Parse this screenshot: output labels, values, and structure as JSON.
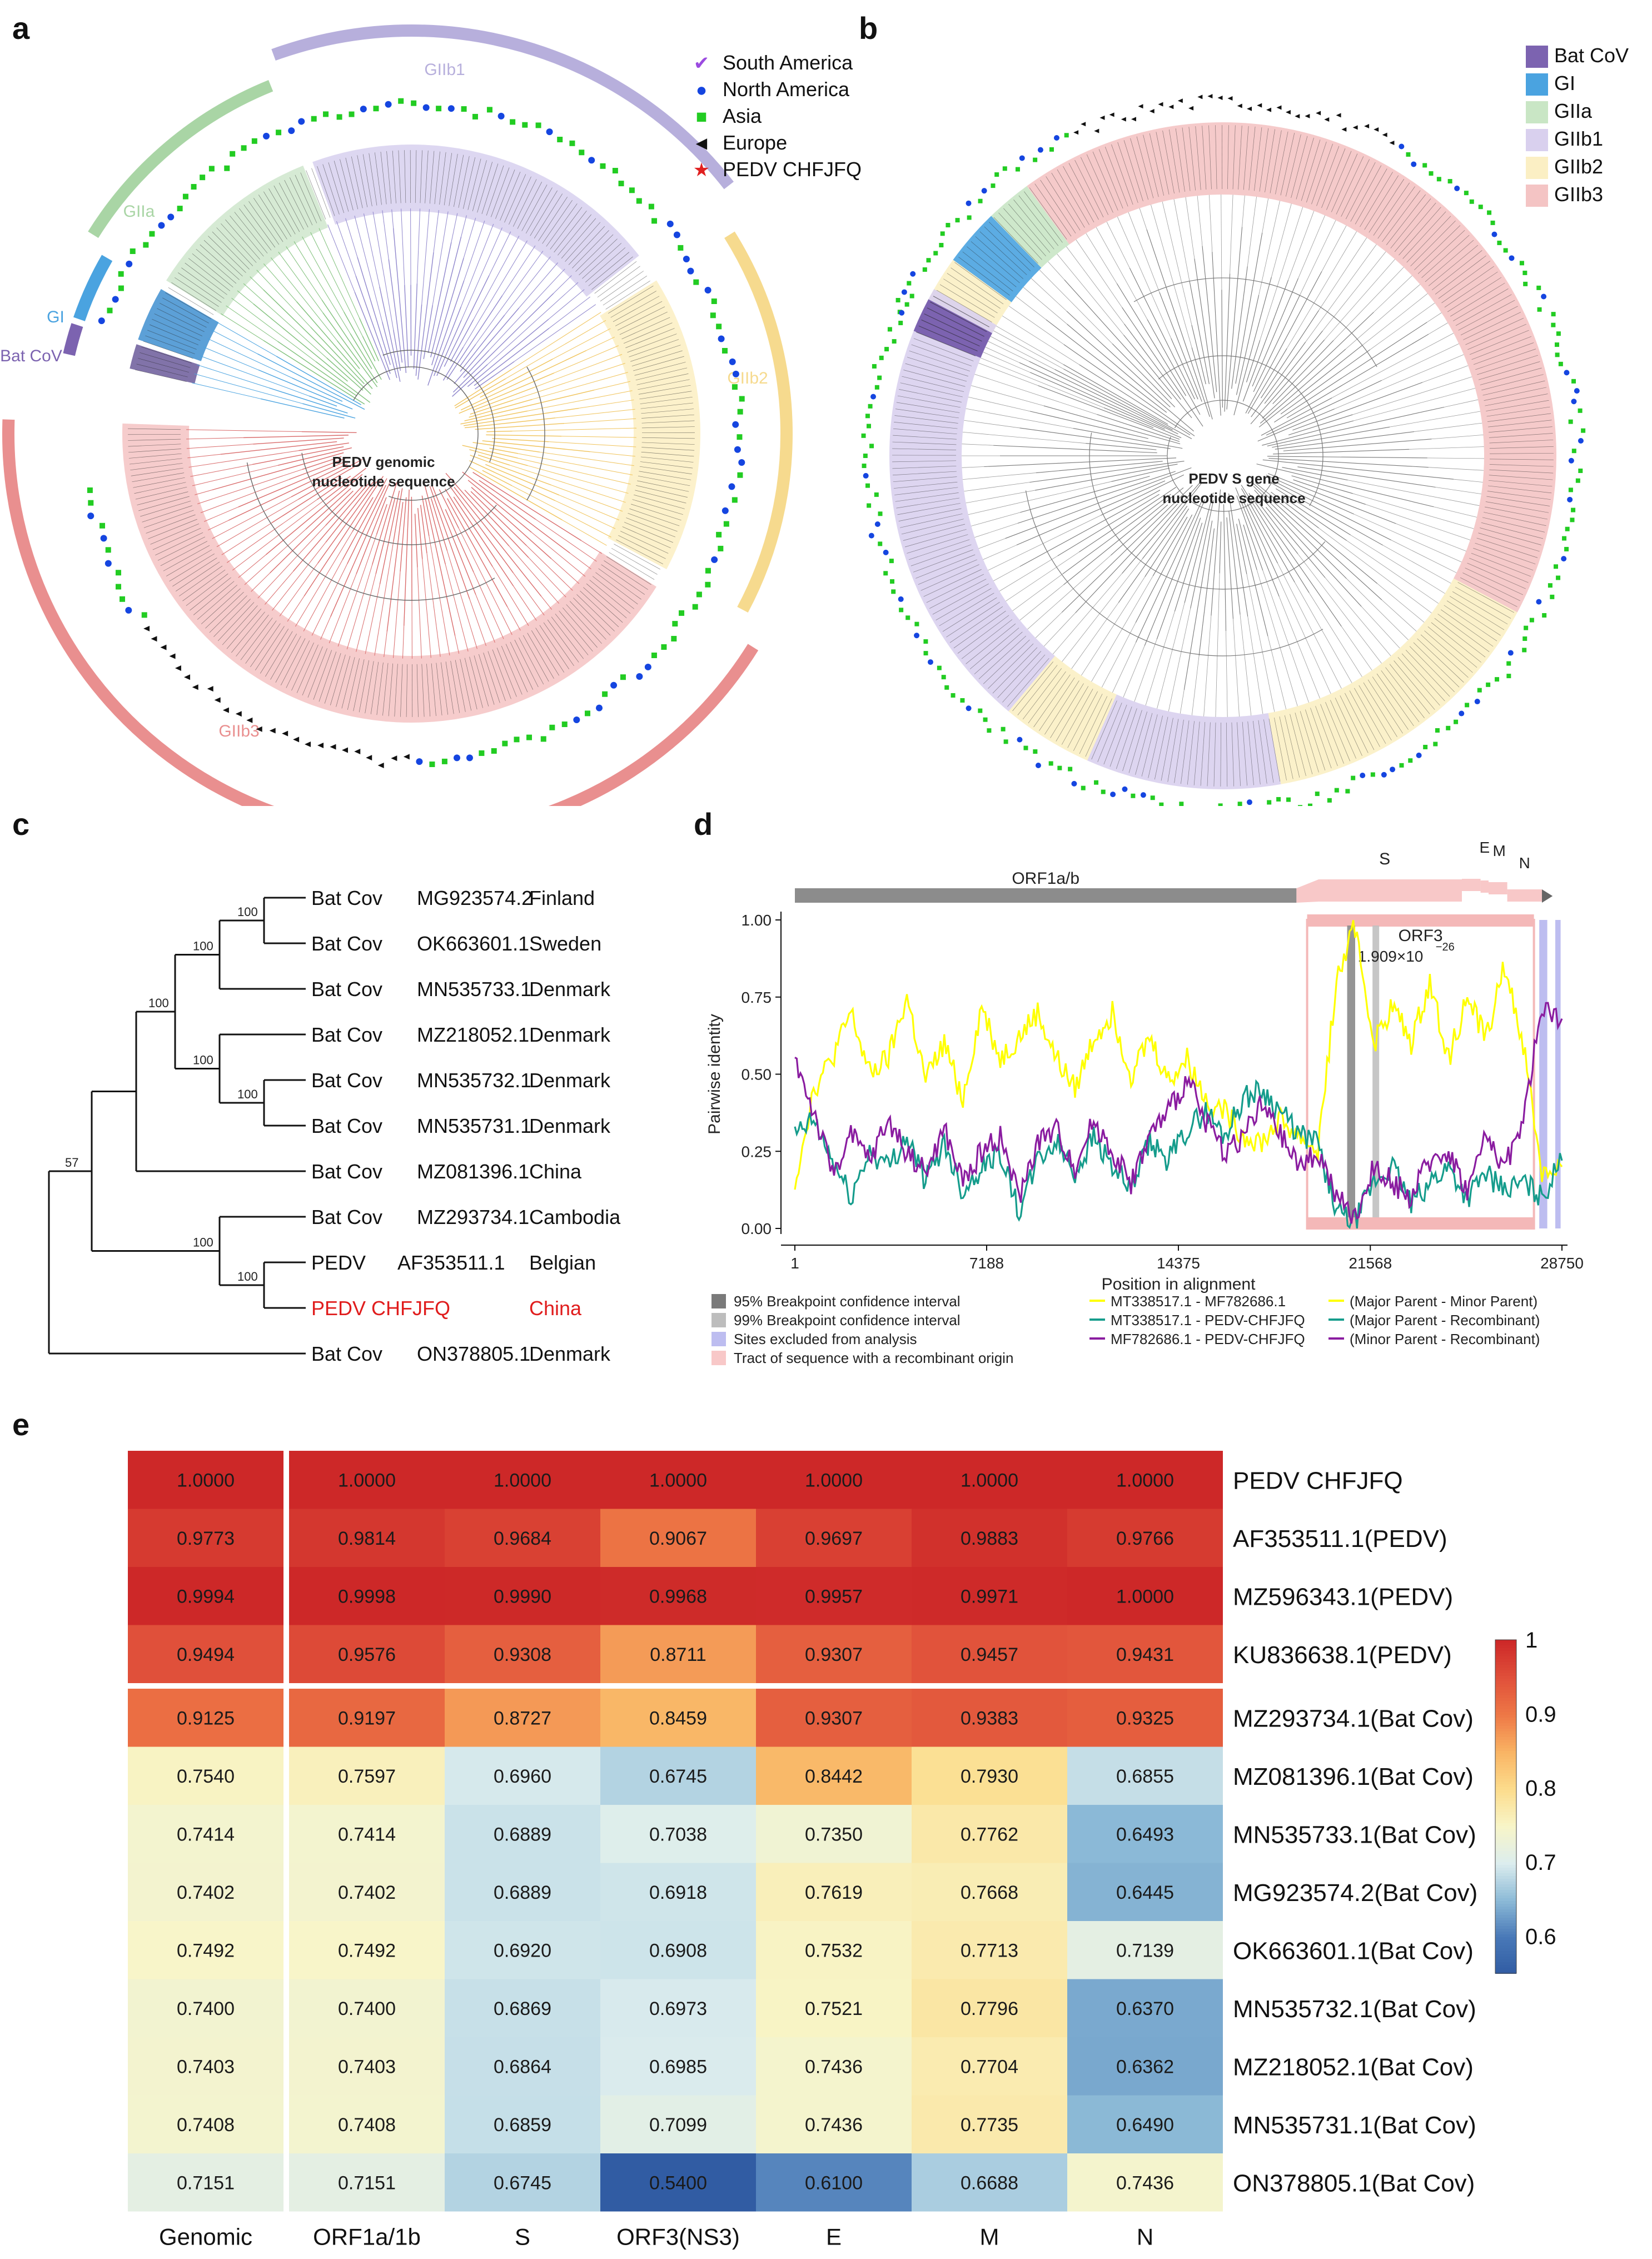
{
  "panels": {
    "a": "a",
    "b": "b",
    "c": "c",
    "d": "d",
    "e": "e"
  },
  "panel_a": {
    "center_label_1": "PEDV genomic",
    "center_label_2": "nucleotide sequence",
    "clades": [
      {
        "name": "Bat CoV",
        "color": "#7c63b0"
      },
      {
        "name": "GI",
        "color": "#4aa3e0"
      },
      {
        "name": "GIIa",
        "color": "#a9d5a5"
      },
      {
        "name": "GIIb1",
        "color": "#b7afdc"
      },
      {
        "name": "GIIb2",
        "color": "#f6da8e"
      },
      {
        "name": "GIIb3",
        "color": "#e98f8f"
      }
    ],
    "legend": [
      {
        "symbol": "✔",
        "label": "South America",
        "color": "#9b4be0"
      },
      {
        "symbol": "●",
        "label": "North America",
        "color": "#1545e0"
      },
      {
        "symbol": "■",
        "label": "Asia",
        "color": "#22cc22"
      },
      {
        "symbol": "◄",
        "label": "Europe",
        "color": "#111111"
      },
      {
        "symbol": "★",
        "label": "PEDV CHFJFQ",
        "color": "#e02020"
      }
    ]
  },
  "panel_b": {
    "center_label_1": "PEDV S gene",
    "center_label_2": "nucleotide sequence",
    "legend": [
      {
        "label": "Bat CoV",
        "color": "#7c63b0"
      },
      {
        "label": "GI",
        "color": "#4aa3e0"
      },
      {
        "label": "GIIa",
        "color": "#c9e6c5"
      },
      {
        "label": "GIIb1",
        "color": "#d9d0ee"
      },
      {
        "label": "GIIb2",
        "color": "#fbefc4"
      },
      {
        "label": "GIIb3",
        "color": "#f4c4c4"
      }
    ]
  },
  "panel_c": {
    "taxa": [
      {
        "name": "Bat Cov",
        "acc": "MG923574.2",
        "country": "Finland",
        "highlight": false
      },
      {
        "name": "Bat Cov",
        "acc": "OK663601.1",
        "country": "Sweden",
        "highlight": false
      },
      {
        "name": "Bat Cov",
        "acc": "MN535733.1",
        "country": "Denmark",
        "highlight": false
      },
      {
        "name": "Bat Cov",
        "acc": "MZ218052.1",
        "country": "Denmark",
        "highlight": false
      },
      {
        "name": "Bat Cov",
        "acc": "MN535732.1",
        "country": "Denmark",
        "highlight": false
      },
      {
        "name": "Bat Cov",
        "acc": "MN535731.1",
        "country": "Denmark",
        "highlight": false
      },
      {
        "name": "Bat Cov",
        "acc": "MZ081396.1",
        "country": "China",
        "highlight": false
      },
      {
        "name": "Bat Cov",
        "acc": "MZ293734.1",
        "country": "Cambodia",
        "highlight": false
      },
      {
        "name": "PEDV",
        "acc": "AF353511.1",
        "country": "Belgian",
        "highlight": false
      },
      {
        "name": "PEDV CHFJFQ",
        "acc": "",
        "country": "China",
        "highlight": true
      },
      {
        "name": "Bat Cov",
        "acc": "ON378805.1",
        "country": "Denmark",
        "highlight": false
      }
    ],
    "bootstrap": [
      "100",
      "100",
      "100",
      "100",
      "100",
      "57",
      "100",
      "100"
    ]
  },
  "chart_data": [
    {
      "type": "line",
      "title": "",
      "xlabel": "Position in alignment",
      "ylabel": "Pairwise identity",
      "xlim": [
        1,
        28750
      ],
      "ylim": [
        0,
        1
      ],
      "x_ticks": [
        "1",
        "7188",
        "14375",
        "21568",
        "28750"
      ],
      "y_ticks": [
        "0.00",
        "0.25",
        "0.50",
        "0.75",
        "1.00"
      ],
      "genes": [
        {
          "name": "ORF1a/b",
          "start": 1,
          "end": 18800
        },
        {
          "name": "S",
          "start": 18800,
          "end": 25000
        },
        {
          "name": "ORF3",
          "start": 25000,
          "end": 25700
        },
        {
          "name": "E",
          "start": 25700,
          "end": 26000
        },
        {
          "name": "M",
          "start": 26000,
          "end": 26700
        },
        {
          "name": "N",
          "start": 26700,
          "end": 28000
        }
      ],
      "orf3_label": "ORF3",
      "pvalue_prefix": "1.909×10",
      "pvalue_exp": "−26",
      "recombinant_region": [
        19200,
        27700
      ],
      "breakpoint_95": [
        20700,
        21000
      ],
      "breakpoint_99": [
        21650,
        21900
      ],
      "excluded": [
        [
          27900,
          28200
        ],
        [
          28500,
          28700
        ]
      ],
      "x": [
        1,
        700,
        1400,
        2100,
        2800,
        3500,
        4200,
        4900,
        5600,
        6300,
        7000,
        7700,
        8400,
        9100,
        9800,
        10500,
        11200,
        11900,
        12600,
        13300,
        14000,
        14700,
        15400,
        16100,
        16800,
        17500,
        18200,
        18900,
        19600,
        20300,
        21000,
        21700,
        22400,
        23100,
        23800,
        24500,
        25200,
        25900,
        26600,
        27300,
        28000,
        28750
      ],
      "series": [
        {
          "name": "MT338517.1 - MF782686.1",
          "color": "#ffff00",
          "values": [
            0.15,
            0.45,
            0.55,
            0.7,
            0.5,
            0.55,
            0.75,
            0.48,
            0.6,
            0.42,
            0.72,
            0.55,
            0.62,
            0.7,
            0.55,
            0.45,
            0.62,
            0.7,
            0.5,
            0.62,
            0.48,
            0.55,
            0.42,
            0.38,
            0.3,
            0.28,
            0.35,
            0.3,
            0.25,
            0.8,
            0.98,
            0.6,
            0.72,
            0.6,
            0.8,
            0.55,
            0.75,
            0.62,
            0.85,
            0.6,
            0.18,
            0.2
          ]
        },
        {
          "name": "MT338517.1 - PEDV-CHFJFQ",
          "color": "#159c8c",
          "values": [
            0.3,
            0.35,
            0.22,
            0.1,
            0.25,
            0.2,
            0.3,
            0.15,
            0.28,
            0.12,
            0.2,
            0.25,
            0.05,
            0.22,
            0.28,
            0.18,
            0.3,
            0.2,
            0.12,
            0.28,
            0.22,
            0.32,
            0.38,
            0.3,
            0.42,
            0.45,
            0.38,
            0.3,
            0.28,
            0.05,
            0.02,
            0.15,
            0.2,
            0.08,
            0.15,
            0.2,
            0.1,
            0.18,
            0.12,
            0.15,
            0.1,
            0.22
          ]
        },
        {
          "name": "MF782686.1 - PEDV-CHFJFQ",
          "color": "#8a1ca0",
          "values": [
            0.55,
            0.38,
            0.18,
            0.3,
            0.22,
            0.35,
            0.25,
            0.18,
            0.32,
            0.15,
            0.25,
            0.3,
            0.1,
            0.28,
            0.32,
            0.2,
            0.35,
            0.25,
            0.15,
            0.3,
            0.38,
            0.48,
            0.35,
            0.25,
            0.3,
            0.4,
            0.3,
            0.2,
            0.25,
            0.1,
            0.03,
            0.2,
            0.15,
            0.1,
            0.22,
            0.25,
            0.12,
            0.3,
            0.2,
            0.35,
            0.72,
            0.68
          ]
        }
      ],
      "legend_left": [
        {
          "label": "95% Breakpoint confidence interval",
          "color": "#7a7a7a"
        },
        {
          "label": "99% Breakpoint confidence interval",
          "color": "#bdbdbd"
        },
        {
          "label": "Sites excluded from analysis",
          "color": "#bdbdf0"
        },
        {
          "label": "Tract of sequence with a recombinant origin",
          "color": "#f8c8c8"
        }
      ],
      "legend_right": [
        {
          "label": "(Major Parent - Minor Parent)",
          "color": "#ffff00"
        },
        {
          "label": "(Major Parent - Recombinant)",
          "color": "#159c8c"
        },
        {
          "label": "(Minor Parent - Recombinant)",
          "color": "#8a1ca0"
        }
      ]
    },
    {
      "type": "heatmap",
      "columns": [
        "Genomic",
        "ORF1a/1b",
        "S",
        "ORF3(NS3)",
        "E",
        "M",
        "N"
      ],
      "rows": [
        "PEDV CHFJFQ",
        "AF353511.1(PEDV)",
        "MZ596343.1(PEDV)",
        "KU836638.1(PEDV)",
        "MZ293734.1(Bat Cov)",
        "MZ081396.1(Bat Cov)",
        "MN535733.1(Bat Cov)",
        "MG923574.2(Bat Cov)",
        "OK663601.1(Bat Cov)",
        "MN535732.1(Bat Cov)",
        "MZ218052.1(Bat Cov)",
        "MN535731.1(Bat Cov)",
        "ON378805.1(Bat Cov)"
      ],
      "values": [
        [
          "1.0000",
          "1.0000",
          "1.0000",
          "1.0000",
          "1.0000",
          "1.0000",
          "1.0000"
        ],
        [
          "0.9773",
          "0.9814",
          "0.9684",
          "0.9067",
          "0.9697",
          "0.9883",
          "0.9766"
        ],
        [
          "0.9994",
          "0.9998",
          "0.9990",
          "0.9968",
          "0.9957",
          "0.9971",
          "1.0000"
        ],
        [
          "0.9494",
          "0.9576",
          "0.9308",
          "0.8711",
          "0.9307",
          "0.9457",
          "0.9431"
        ],
        [
          "0.9125",
          "0.9197",
          "0.8727",
          "0.8459",
          "0.9307",
          "0.9383",
          "0.9325"
        ],
        [
          "0.7540",
          "0.7597",
          "0.6960",
          "0.6745",
          "0.8442",
          "0.7930",
          "0.6855"
        ],
        [
          "0.7414",
          "0.7414",
          "0.6889",
          "0.7038",
          "0.7350",
          "0.7762",
          "0.6493"
        ],
        [
          "0.7402",
          "0.7402",
          "0.6889",
          "0.6918",
          "0.7619",
          "0.7668",
          "0.6445"
        ],
        [
          "0.7492",
          "0.7492",
          "0.6920",
          "0.6908",
          "0.7532",
          "0.7713",
          "0.7139"
        ],
        [
          "0.7400",
          "0.7400",
          "0.6869",
          "0.6973",
          "0.7521",
          "0.7796",
          "0.6370"
        ],
        [
          "0.7403",
          "0.7403",
          "0.6864",
          "0.6985",
          "0.7436",
          "0.7704",
          "0.6362"
        ],
        [
          "0.7408",
          "0.7408",
          "0.6859",
          "0.7099",
          "0.7436",
          "0.7735",
          "0.6490"
        ],
        [
          "0.7151",
          "0.7151",
          "0.6745",
          "0.5400",
          "0.6100",
          "0.6688",
          "0.7436"
        ]
      ],
      "colorbar_range": [
        0.55,
        1.0
      ],
      "colorbar_ticks": [
        "0.6",
        "0.7",
        "0.8",
        "0.9",
        "1"
      ]
    }
  ]
}
